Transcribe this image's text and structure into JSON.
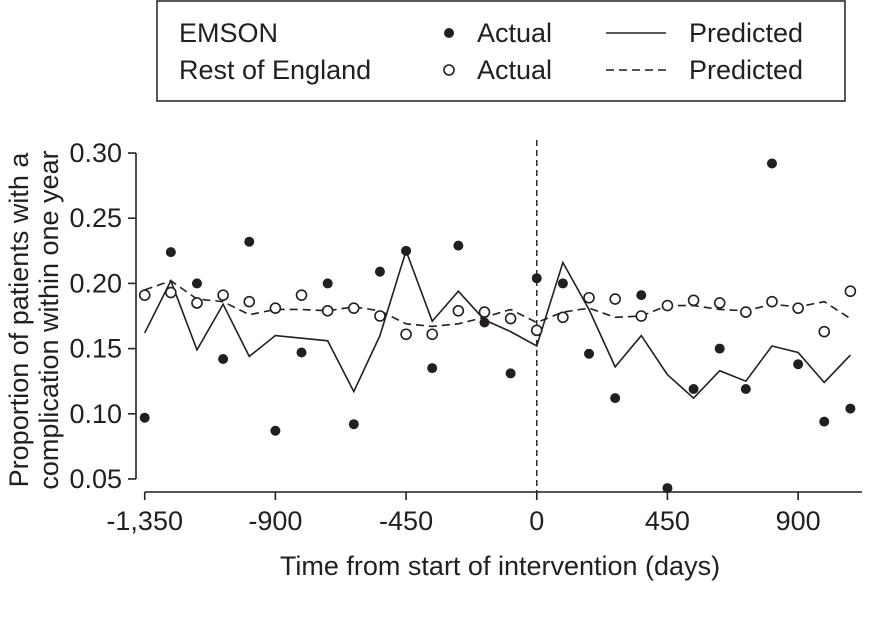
{
  "chart_data": {
    "type": "scatter",
    "title": "",
    "xlabel": "Time from start of intervention (days)",
    "ylabel_line1": "Proportion of patients with a",
    "ylabel_line2": "complication within one year",
    "xlim": [
      -1380,
      1120
    ],
    "ylim": [
      0.04,
      0.31
    ],
    "xticks": [
      {
        "value": -1350,
        "label": "-1,350"
      },
      {
        "value": -900,
        "label": "-900"
      },
      {
        "value": -450,
        "label": "-450"
      },
      {
        "value": 0,
        "label": "0"
      },
      {
        "value": 450,
        "label": "450"
      },
      {
        "value": 900,
        "label": "900"
      }
    ],
    "yticks": [
      {
        "value": 0.05,
        "label": "0.05"
      },
      {
        "value": 0.1,
        "label": "0.10"
      },
      {
        "value": 0.15,
        "label": "0.15"
      },
      {
        "value": 0.2,
        "label": "0.20"
      },
      {
        "value": 0.25,
        "label": "0.25"
      },
      {
        "value": 0.3,
        "label": "0.30"
      }
    ],
    "intervention_x": 0,
    "x": [
      -1350,
      -1260,
      -1170,
      -1080,
      -990,
      -900,
      -810,
      -720,
      -630,
      -540,
      -450,
      -360,
      -270,
      -180,
      -90,
      0,
      90,
      180,
      270,
      360,
      450,
      540,
      630,
      720,
      810,
      900,
      990,
      1080
    ],
    "series": [
      {
        "name": "EMSON Actual",
        "kind": "points",
        "marker": "filled",
        "values": [
          0.097,
          0.224,
          0.2,
          0.142,
          0.232,
          0.087,
          0.147,
          0.2,
          0.092,
          0.209,
          0.225,
          0.135,
          0.229,
          0.17,
          0.131,
          0.204,
          0.2,
          0.146,
          0.112,
          0.191,
          0.043,
          0.119,
          0.15,
          0.119,
          0.292,
          0.138,
          0.094,
          0.104
        ]
      },
      {
        "name": "EMSON Predicted",
        "kind": "line",
        "dash": "solid",
        "values": [
          0.162,
          0.202,
          0.149,
          0.184,
          0.144,
          0.16,
          0.158,
          0.156,
          0.117,
          0.16,
          0.225,
          0.171,
          0.194,
          0.172,
          0.163,
          0.152,
          0.216,
          0.18,
          0.136,
          0.16,
          0.13,
          0.112,
          0.133,
          0.125,
          0.152,
          0.147,
          0.124,
          0.145
        ]
      },
      {
        "name": "Rest of England Actual",
        "kind": "points",
        "marker": "open",
        "values": [
          0.191,
          0.193,
          0.185,
          0.191,
          0.186,
          0.181,
          0.191,
          0.179,
          0.181,
          0.175,
          0.161,
          0.161,
          0.179,
          0.178,
          0.173,
          0.164,
          0.174,
          0.189,
          0.188,
          0.175,
          0.183,
          0.187,
          0.185,
          0.178,
          0.186,
          0.181,
          0.163,
          0.194
        ]
      },
      {
        "name": "Rest of England Predicted",
        "kind": "line",
        "dash": "dashed",
        "values": [
          0.195,
          0.202,
          0.188,
          0.186,
          0.176,
          0.18,
          0.18,
          0.179,
          0.182,
          0.179,
          0.169,
          0.167,
          0.169,
          0.174,
          0.18,
          0.17,
          0.178,
          0.181,
          0.174,
          0.175,
          0.183,
          0.183,
          0.18,
          0.179,
          0.184,
          0.182,
          0.186,
          0.173
        ]
      }
    ],
    "legend": {
      "placement": "top",
      "rows": [
        {
          "group": "EMSON",
          "marker_label": "Actual",
          "marker": "filled",
          "line_label": "Predicted",
          "line_dash": "solid"
        },
        {
          "group": "Rest of England",
          "marker_label": "Actual",
          "marker": "open",
          "line_label": "Predicted",
          "line_dash": "dashed"
        }
      ]
    },
    "colors": {
      "ink": "#231f20",
      "background": "#ffffff"
    }
  }
}
